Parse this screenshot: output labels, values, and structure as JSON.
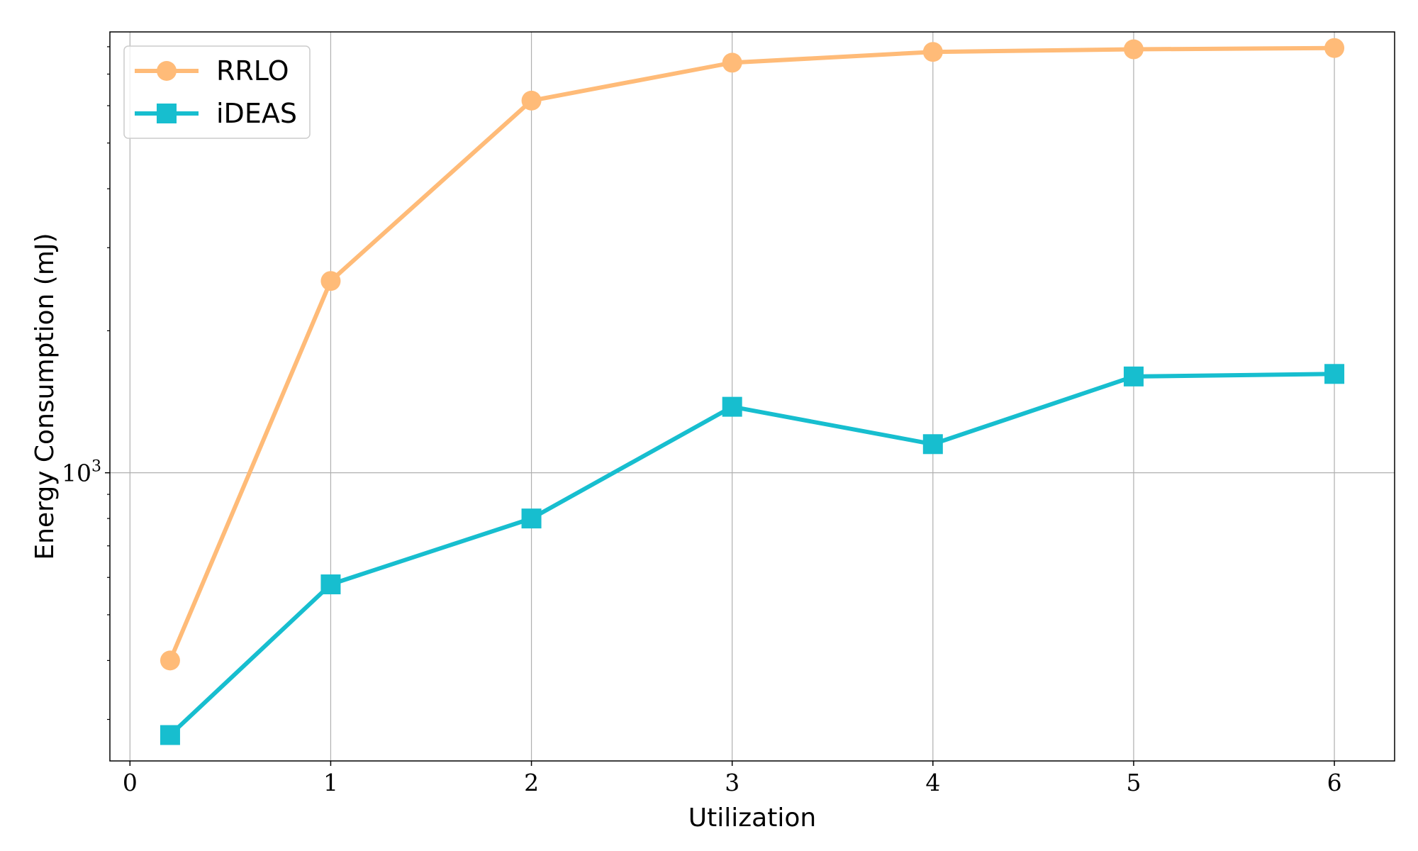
{
  "chart_data": {
    "type": "line",
    "title": "",
    "xlabel": "Utilization",
    "ylabel": "Energy Consumption (mJ)",
    "yscale": "log",
    "xlim": [
      -0.1,
      6.3
    ],
    "ylim": [
      245,
      8600
    ],
    "x_ticks": [
      0,
      1,
      2,
      3,
      4,
      5,
      6
    ],
    "y_major_ticks": [
      {
        "value": 1000,
        "base": "10",
        "exponent": "3"
      }
    ],
    "y_minor_ticks": [
      300,
      400,
      500,
      600,
      700,
      800,
      900,
      2000,
      3000,
      4000,
      5000,
      6000,
      7000,
      8000
    ],
    "grid": true,
    "legend_position": "upper-left",
    "series": [
      {
        "name": "RRLO",
        "color": "#ffbb78",
        "marker": "circle",
        "x": [
          0.2,
          1,
          2,
          3,
          4,
          5,
          6
        ],
        "y": [
          400,
          2550,
          6150,
          7400,
          7800,
          7900,
          7950
        ]
      },
      {
        "name": "iDEAS",
        "color": "#17becf",
        "marker": "square",
        "x": [
          0.2,
          1,
          2,
          3,
          4,
          5,
          6
        ],
        "y": [
          278,
          580,
          800,
          1380,
          1150,
          1600,
          1620
        ]
      }
    ]
  }
}
